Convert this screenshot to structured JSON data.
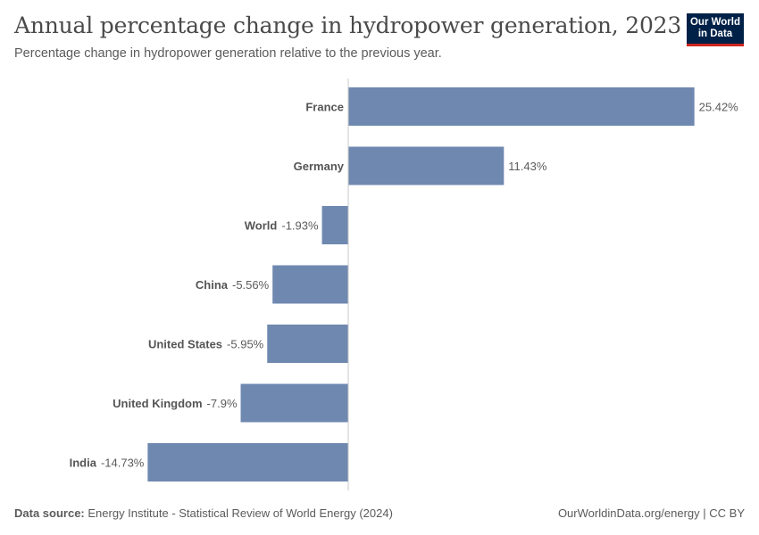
{
  "title": "Annual percentage change in hydropower generation, 2023",
  "subtitle": "Percentage change in hydropower generation relative to the previous year.",
  "logo": {
    "line1": "Our World",
    "line2": "in Data"
  },
  "footer": {
    "source_label": "Data source:",
    "source_text": "Energy Institute - Statistical Review of World Energy (2024)",
    "credit": "OurWorldinData.org/energy | CC BY"
  },
  "colors": {
    "bar": "#6f88b0",
    "axis": "#c8c8c8"
  },
  "chart_data": {
    "type": "bar",
    "orientation": "horizontal",
    "categories": [
      "France",
      "Germany",
      "World",
      "China",
      "United States",
      "United Kingdom",
      "India"
    ],
    "values": [
      25.42,
      11.43,
      -1.93,
      -5.56,
      -5.95,
      -7.9,
      -14.73
    ],
    "value_labels": [
      "25.42%",
      "11.43%",
      "-1.93%",
      "-5.56%",
      "-5.95%",
      "-7.9%",
      "-14.73%"
    ],
    "unit": "%",
    "xlim": [
      -14.73,
      25.42
    ],
    "grid": false
  }
}
